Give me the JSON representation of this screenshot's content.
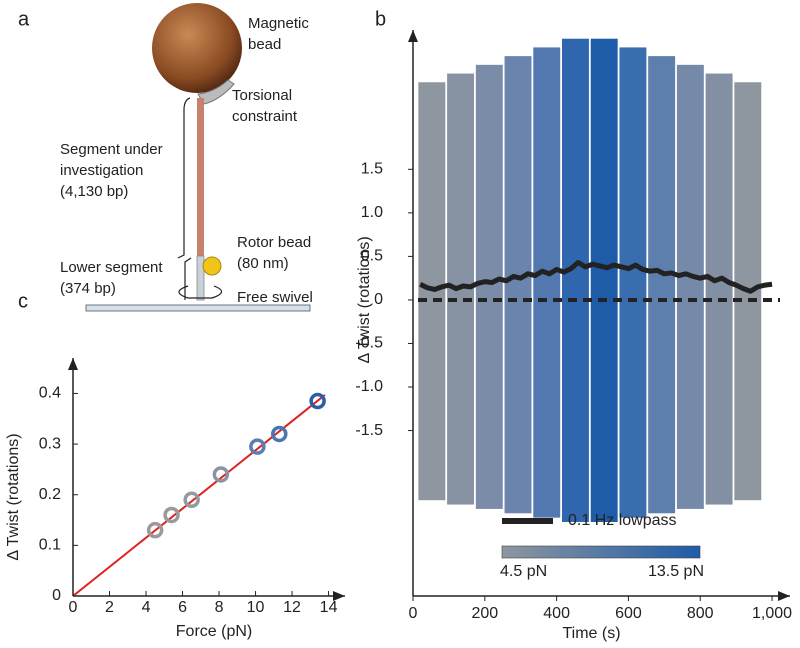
{
  "panel_labels": [
    "a",
    "b",
    "c"
  ],
  "diagram": {
    "labels": [
      {
        "lines": [
          "Magnetic",
          "bead"
        ]
      },
      {
        "lines": [
          "Torsional",
          "constraint"
        ]
      },
      {
        "lines": [
          "Segment under",
          "investigation",
          "(4,130 bp)"
        ]
      },
      {
        "lines": [
          "Rotor bead",
          "(80 nm)"
        ]
      },
      {
        "lines": [
          "Lower segment",
          "(374 bp)"
        ]
      },
      {
        "lines": [
          "Free swivel"
        ]
      }
    ]
  },
  "chart_data": [
    {
      "type": "band",
      "xlabel": "Time (s)",
      "ylabel": "Δ Twist (rotations)",
      "xlim": [
        0,
        1050
      ],
      "ylim": [
        -3.4,
        3.1
      ],
      "xticks": [
        0,
        200,
        400,
        600,
        800,
        {
          "value": 1000,
          "label": "1,000"
        }
      ],
      "yticks": [
        -1.5,
        {
          "value": -1.0,
          "label": "-1.0"
        },
        -0.5,
        0,
        0.5,
        {
          "value": 1.0,
          "label": "1.0"
        },
        1.5
      ],
      "bands": {
        "x_start": [
          15,
          95,
          175,
          255,
          335,
          415,
          495,
          575,
          655,
          735,
          815,
          895
        ],
        "x_end": [
          90,
          170,
          250,
          330,
          410,
          490,
          570,
          650,
          730,
          810,
          890,
          970
        ],
        "low": [
          -2.3,
          -2.35,
          -2.4,
          -2.45,
          -2.5,
          -2.55,
          -2.55,
          -2.5,
          -2.45,
          -2.4,
          -2.35,
          -2.3
        ],
        "high": [
          2.5,
          2.6,
          2.7,
          2.8,
          2.9,
          3.0,
          3.0,
          2.9,
          2.8,
          2.7,
          2.6,
          2.5
        ],
        "colors": [
          "#8e969f",
          "#8793a3",
          "#7a8ca8",
          "#6b84ad",
          "#5378b0",
          "#2f66ad",
          "#1f5ca8",
          "#3a6dae",
          "#5d7fad",
          "#7589a8",
          "#838fa3",
          "#8e969f"
        ]
      },
      "series": [
        {
          "name": "0.1 Hz lowpass",
          "color": "#222222",
          "x": [
            20,
            40,
            60,
            80,
            100,
            120,
            140,
            160,
            180,
            200,
            220,
            240,
            260,
            280,
            300,
            320,
            340,
            360,
            380,
            400,
            420,
            440,
            460,
            480,
            500,
            520,
            540,
            560,
            580,
            600,
            620,
            640,
            660,
            680,
            700,
            720,
            740,
            760,
            780,
            800,
            820,
            840,
            860,
            880,
            900,
            920,
            940,
            960,
            980,
            1000
          ],
          "values": [
            0.18,
            0.14,
            0.12,
            0.15,
            0.17,
            0.13,
            0.16,
            0.15,
            0.19,
            0.21,
            0.2,
            0.24,
            0.22,
            0.27,
            0.25,
            0.3,
            0.28,
            0.33,
            0.3,
            0.35,
            0.32,
            0.36,
            0.43,
            0.38,
            0.41,
            0.39,
            0.37,
            0.4,
            0.38,
            0.36,
            0.4,
            0.35,
            0.33,
            0.34,
            0.3,
            0.31,
            0.28,
            0.3,
            0.27,
            0.25,
            0.27,
            0.22,
            0.25,
            0.2,
            0.17,
            0.13,
            0.1,
            0.15,
            0.17,
            0.18
          ]
        }
      ],
      "hline": 0,
      "colorbar": {
        "min": 4.5,
        "max": 13.5,
        "min_label": "4.5 pN",
        "max_label": "13.5 pN",
        "colors": [
          "#8e969f",
          "#1f5ca8"
        ]
      }
    },
    {
      "type": "scatter",
      "xlabel": "Force (pN)",
      "ylabel": "Δ Twist (rotations)",
      "xlim": [
        0,
        14.9
      ],
      "ylim": [
        0,
        0.47
      ],
      "xticks": [
        0,
        2,
        4,
        6,
        8,
        10,
        12,
        14
      ],
      "yticks": [
        0,
        0.1,
        0.2,
        0.3,
        0.4
      ],
      "x": [
        4.5,
        5.4,
        6.5,
        8.1,
        10.1,
        11.3,
        13.4
      ],
      "values": [
        0.13,
        0.16,
        0.19,
        0.24,
        0.295,
        0.32,
        0.385
      ],
      "colors": [
        "#9a9a9a",
        "#9a9a9a",
        "#949aa2",
        "#8a95a3",
        "#5a7fb0",
        "#4a75b0",
        "#2a5ea8"
      ],
      "fit": {
        "color": "#e02020",
        "x": [
          0,
          13.8
        ],
        "values": [
          0,
          0.397
        ]
      }
    }
  ]
}
